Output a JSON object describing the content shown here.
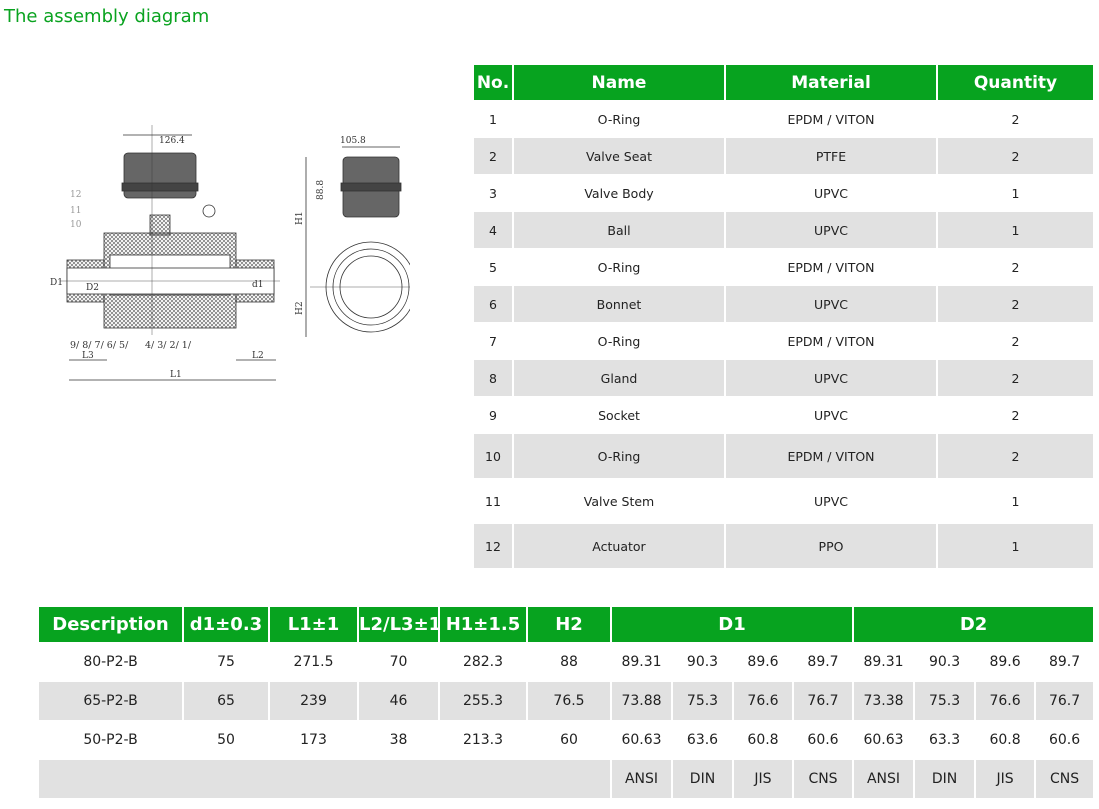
{
  "title": "The assembly diagram",
  "diagram": {
    "width_label": "126.4",
    "side_width_label": "105.8",
    "actuator_height_label": "88.8",
    "dimension_labels": [
      "D1",
      "D2",
      "d1",
      "L1",
      "L2",
      "L3",
      "H1",
      "H2"
    ],
    "part_callouts": [
      "12",
      "11",
      "10",
      "9",
      "8",
      "7",
      "6",
      "5",
      "4",
      "3",
      "2",
      "1"
    ]
  },
  "parts_table": {
    "headers": [
      "No.",
      "Name",
      "Material",
      "Quantity"
    ],
    "rows": [
      [
        "1",
        "O-Ring",
        "EPDM / VITON",
        "2"
      ],
      [
        "2",
        "Valve Seat",
        "PTFE",
        "2"
      ],
      [
        "3",
        "Valve Body",
        "UPVC",
        "1"
      ],
      [
        "4",
        "Ball",
        "UPVC",
        "1"
      ],
      [
        "5",
        "O-Ring",
        "EPDM / VITON",
        "2"
      ],
      [
        "6",
        "Bonnet",
        "UPVC",
        "2"
      ],
      [
        "7",
        "O-Ring",
        "EPDM / VITON",
        "2"
      ],
      [
        "8",
        "Gland",
        "UPVC",
        "2"
      ],
      [
        "9",
        "Socket",
        "UPVC",
        "2"
      ],
      [
        "10",
        "O-Ring",
        "EPDM / VITON",
        "2"
      ],
      [
        "11",
        "Valve Stem",
        "UPVC",
        "1"
      ],
      [
        "12",
        "Actuator",
        "PPO",
        "1"
      ]
    ]
  },
  "spec_table": {
    "headers": [
      "Description",
      "d1±0.3",
      "L1±1",
      "L2/L3±1",
      "H1±1.5",
      "H2",
      "D1",
      "D2"
    ],
    "rows": [
      [
        "80-P2-B",
        "75",
        "271.5",
        "70",
        "282.3",
        "88",
        "89.31",
        "90.3",
        "89.6",
        "89.7",
        "89.31",
        "90.3",
        "89.6",
        "89.7"
      ],
      [
        "65-P2-B",
        "65",
        "239",
        "46",
        "255.3",
        "76.5",
        "73.88",
        "75.3",
        "76.6",
        "76.7",
        "73.38",
        "75.3",
        "76.6",
        "76.7"
      ],
      [
        "50-P2-B",
        "50",
        "173",
        "38",
        "213.3",
        "60",
        "60.63",
        "63.6",
        "60.8",
        "60.6",
        "60.63",
        "63.3",
        "60.8",
        "60.6"
      ]
    ],
    "standards": [
      "ANSI",
      "DIN",
      "JIS",
      "CNS",
      "ANSI",
      "DIN",
      "JIS",
      "CNS"
    ]
  },
  "colors": {
    "accent": "#07a31f",
    "row_alt": "#e1e1e1"
  }
}
